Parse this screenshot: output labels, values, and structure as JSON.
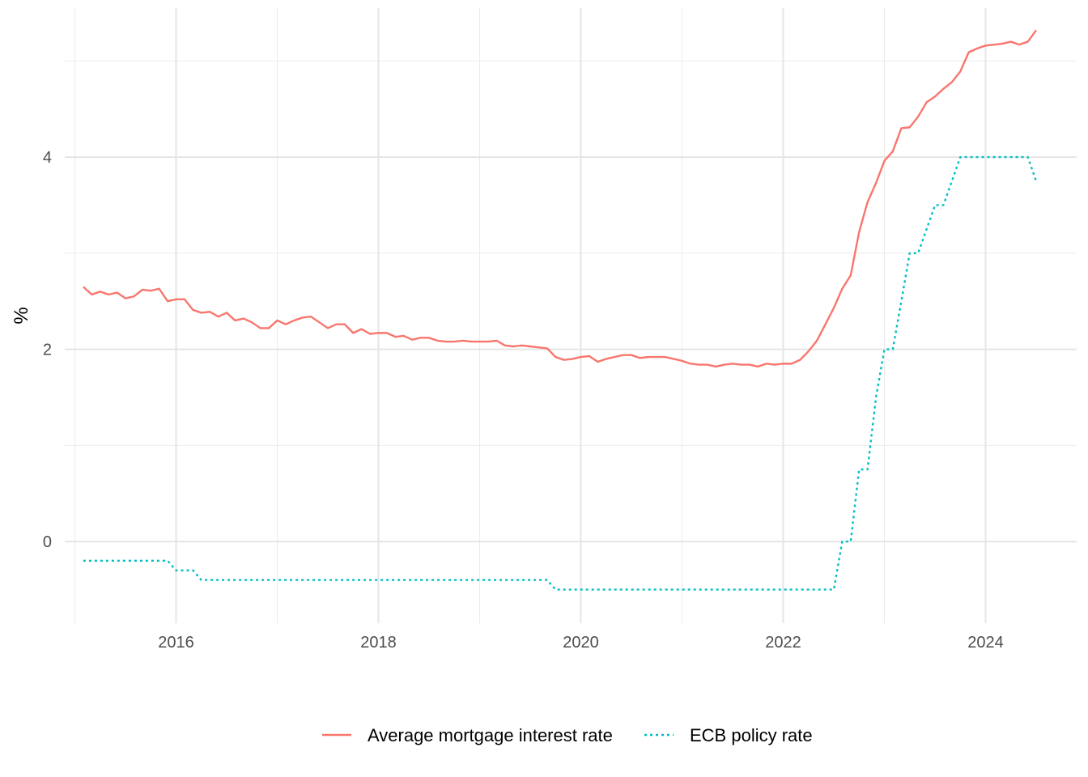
{
  "chart_data": {
    "type": "line",
    "title": "",
    "xlabel": "",
    "ylabel": "%",
    "xlim": [
      2014.9,
      2024.9
    ],
    "ylim": [
      -0.85,
      5.55
    ],
    "x_ticks": [
      2016,
      2018,
      2020,
      2022,
      2024
    ],
    "x_tick_labels": [
      "2016",
      "2018",
      "2020",
      "2022",
      "2024"
    ],
    "x_minor_ticks": [
      2015,
      2017,
      2019,
      2021,
      2023
    ],
    "y_ticks": [
      0,
      2,
      4
    ],
    "y_tick_labels": [
      "0",
      "2",
      "4"
    ],
    "y_minor_ticks": [
      1,
      3,
      5
    ],
    "grid": true,
    "legend_position": "bottom",
    "series": [
      {
        "name": "Average mortgage interest rate",
        "color": "#F8766D",
        "style": "solid",
        "x": [
          2015.083,
          2015.167,
          2015.25,
          2015.333,
          2015.417,
          2015.5,
          2015.583,
          2015.667,
          2015.75,
          2015.833,
          2015.917,
          2016.0,
          2016.083,
          2016.167,
          2016.25,
          2016.333,
          2016.417,
          2016.5,
          2016.583,
          2016.667,
          2016.75,
          2016.833,
          2016.917,
          2017.0,
          2017.083,
          2017.167,
          2017.25,
          2017.333,
          2017.417,
          2017.5,
          2017.583,
          2017.667,
          2017.75,
          2017.833,
          2017.917,
          2018.0,
          2018.083,
          2018.167,
          2018.25,
          2018.333,
          2018.417,
          2018.5,
          2018.583,
          2018.667,
          2018.75,
          2018.833,
          2018.917,
          2019.0,
          2019.083,
          2019.167,
          2019.25,
          2019.333,
          2019.417,
          2019.5,
          2019.583,
          2019.667,
          2019.75,
          2019.833,
          2019.917,
          2020.0,
          2020.083,
          2020.167,
          2020.25,
          2020.333,
          2020.417,
          2020.5,
          2020.583,
          2020.667,
          2020.75,
          2020.833,
          2020.917,
          2021.0,
          2021.083,
          2021.167,
          2021.25,
          2021.333,
          2021.417,
          2021.5,
          2021.583,
          2021.667,
          2021.75,
          2021.833,
          2021.917,
          2022.0,
          2022.083,
          2022.167,
          2022.25,
          2022.333,
          2022.417,
          2022.5,
          2022.583,
          2022.667,
          2022.75,
          2022.833,
          2022.917,
          2023.0,
          2023.083,
          2023.167,
          2023.25,
          2023.333,
          2023.417,
          2023.5,
          2023.583,
          2023.667,
          2023.75,
          2023.833,
          2023.917,
          2024.0,
          2024.083,
          2024.167,
          2024.25,
          2024.333,
          2024.417,
          2024.5
        ],
        "values": [
          2.65,
          2.57,
          2.6,
          2.57,
          2.59,
          2.53,
          2.55,
          2.62,
          2.61,
          2.63,
          2.5,
          2.52,
          2.52,
          2.41,
          2.38,
          2.39,
          2.34,
          2.38,
          2.3,
          2.32,
          2.28,
          2.22,
          2.22,
          2.3,
          2.26,
          2.3,
          2.33,
          2.34,
          2.28,
          2.22,
          2.26,
          2.26,
          2.17,
          2.21,
          2.16,
          2.17,
          2.17,
          2.13,
          2.14,
          2.1,
          2.12,
          2.12,
          2.09,
          2.08,
          2.08,
          2.09,
          2.08,
          2.08,
          2.08,
          2.09,
          2.04,
          2.03,
          2.04,
          2.03,
          2.02,
          2.01,
          1.92,
          1.89,
          1.9,
          1.92,
          1.93,
          1.87,
          1.9,
          1.92,
          1.94,
          1.94,
          1.91,
          1.92,
          1.92,
          1.92,
          1.9,
          1.88,
          1.85,
          1.84,
          1.84,
          1.82,
          1.84,
          1.85,
          1.84,
          1.84,
          1.82,
          1.85,
          1.84,
          1.85,
          1.85,
          1.89,
          1.98,
          2.09,
          2.26,
          2.43,
          2.63,
          2.77,
          3.22,
          3.53,
          3.73,
          3.96,
          4.06,
          4.3,
          4.31,
          4.42,
          4.57,
          4.63,
          4.71,
          4.78,
          4.89,
          5.09,
          5.13,
          5.16,
          5.17,
          5.18,
          5.2,
          5.17,
          5.2,
          5.32
        ]
      },
      {
        "name": "ECB policy rate",
        "color": "#00BFC4",
        "style": "dotted",
        "x": [
          2015.083,
          2015.917,
          2016.0,
          2016.167,
          2016.25,
          2019.667,
          2019.75,
          2022.5,
          2022.583,
          2022.667,
          2022.75,
          2022.833,
          2022.917,
          2023.0,
          2023.083,
          2023.167,
          2023.25,
          2023.333,
          2023.417,
          2023.5,
          2023.583,
          2023.667,
          2023.75,
          2024.417,
          2024.5
        ],
        "values": [
          -0.2,
          -0.2,
          -0.3,
          -0.3,
          -0.4,
          -0.4,
          -0.5,
          -0.5,
          0.0,
          0.0,
          0.75,
          0.75,
          1.5,
          2.0,
          2.0,
          2.5,
          3.0,
          3.0,
          3.25,
          3.5,
          3.5,
          3.75,
          4.0,
          4.0,
          3.75
        ]
      }
    ]
  }
}
